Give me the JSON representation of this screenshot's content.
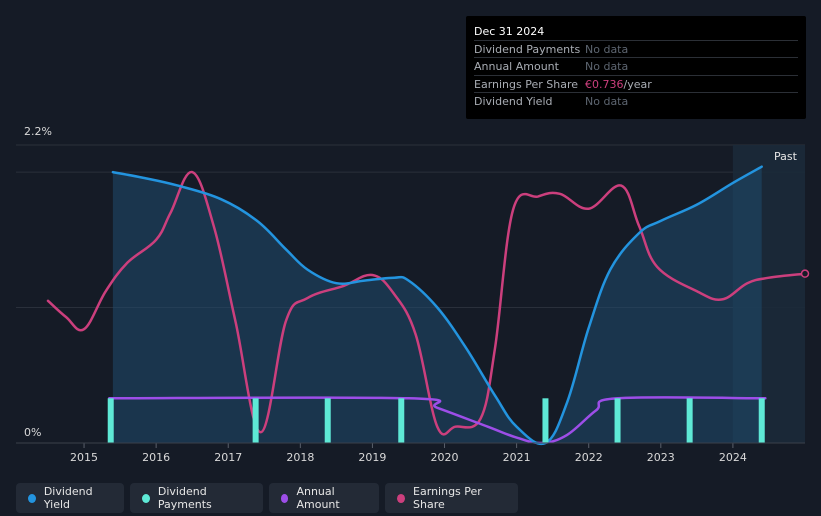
{
  "tooltip": {
    "date": "Dec 31 2024",
    "rows": [
      {
        "label": "Dividend Payments",
        "value": "No data",
        "unit": ""
      },
      {
        "label": "Annual Amount",
        "value": "No data",
        "unit": ""
      },
      {
        "label": "Earnings Per Share",
        "value": "€0.736",
        "unit": "/year"
      },
      {
        "label": "Dividend Yield",
        "value": "No data",
        "unit": ""
      }
    ]
  },
  "past_label": "Past",
  "legend": [
    {
      "label": "Dividend Yield",
      "color": "#2394df"
    },
    {
      "label": "Dividend Payments",
      "color": "#5ee9d6"
    },
    {
      "label": "Annual Amount",
      "color": "#9d4ee8"
    },
    {
      "label": "Earnings Per Share",
      "color": "#cc3f7d"
    }
  ],
  "chart_data": {
    "type": "line",
    "ylim": [
      0,
      2.2
    ],
    "y_tick_labels": [
      "2.2%",
      "0%"
    ],
    "x_ticks": [
      2015,
      2016,
      2017,
      2018,
      2019,
      2020,
      2021,
      2022,
      2023,
      2024
    ],
    "xlim": [
      2014.5,
      2025.0
    ],
    "past_region_start": 2024.0,
    "series": [
      {
        "name": "Dividend Yield",
        "color": "#2394df",
        "points": [
          [
            2015.4,
            2.0
          ],
          [
            2015.8,
            1.96
          ],
          [
            2016.3,
            1.9
          ],
          [
            2016.9,
            1.8
          ],
          [
            2017.4,
            1.64
          ],
          [
            2017.8,
            1.43
          ],
          [
            2018.1,
            1.28
          ],
          [
            2018.5,
            1.18
          ],
          [
            2018.9,
            1.2
          ],
          [
            2019.3,
            1.22
          ],
          [
            2019.5,
            1.2
          ],
          [
            2019.9,
            1.0
          ],
          [
            2020.3,
            0.7
          ],
          [
            2020.7,
            0.35
          ],
          [
            2021.0,
            0.12
          ],
          [
            2021.4,
            0.0
          ],
          [
            2021.7,
            0.3
          ],
          [
            2022.0,
            0.85
          ],
          [
            2022.3,
            1.28
          ],
          [
            2022.7,
            1.55
          ],
          [
            2023.0,
            1.64
          ],
          [
            2023.5,
            1.76
          ],
          [
            2024.0,
            1.92
          ],
          [
            2024.4,
            2.04
          ]
        ]
      },
      {
        "name": "Earnings Per Share",
        "color": "#cc3f7d",
        "points": [
          [
            2014.5,
            1.05
          ],
          [
            2014.75,
            0.93
          ],
          [
            2015.0,
            0.84
          ],
          [
            2015.3,
            1.12
          ],
          [
            2015.6,
            1.33
          ],
          [
            2016.0,
            1.5
          ],
          [
            2016.2,
            1.7
          ],
          [
            2016.5,
            2.0
          ],
          [
            2016.8,
            1.6
          ],
          [
            2017.1,
            0.9
          ],
          [
            2017.45,
            0.08
          ],
          [
            2017.8,
            0.9
          ],
          [
            2018.1,
            1.07
          ],
          [
            2018.6,
            1.16
          ],
          [
            2019.0,
            1.24
          ],
          [
            2019.3,
            1.1
          ],
          [
            2019.6,
            0.8
          ],
          [
            2019.9,
            0.12
          ],
          [
            2020.15,
            0.12
          ],
          [
            2020.5,
            0.18
          ],
          [
            2020.7,
            0.7
          ],
          [
            2020.95,
            1.72
          ],
          [
            2021.3,
            1.82
          ],
          [
            2021.6,
            1.84
          ],
          [
            2022.0,
            1.73
          ],
          [
            2022.45,
            1.9
          ],
          [
            2022.7,
            1.6
          ],
          [
            2022.95,
            1.3
          ],
          [
            2023.5,
            1.12
          ],
          [
            2023.85,
            1.06
          ],
          [
            2024.2,
            1.18
          ],
          [
            2024.5,
            1.22
          ],
          [
            2025.0,
            1.25
          ]
        ]
      },
      {
        "name": "Annual Amount",
        "color": "#9d4ee8",
        "points": [
          [
            2015.35,
            0.33
          ],
          [
            2019.5,
            0.33
          ],
          [
            2019.9,
            0.26
          ],
          [
            2020.6,
            0.12
          ],
          [
            2021.0,
            0.04
          ],
          [
            2021.35,
            0.0
          ],
          [
            2021.7,
            0.06
          ],
          [
            2022.1,
            0.24
          ],
          [
            2022.4,
            0.33
          ],
          [
            2024.45,
            0.33
          ]
        ]
      }
    ],
    "dividend_payments": {
      "name": "Dividend Payments",
      "color": "#5ee9d6",
      "points": [
        [
          2015.37,
          0.33
        ],
        [
          2017.38,
          0.33
        ],
        [
          2018.38,
          0.33
        ],
        [
          2019.4,
          0.33
        ],
        [
          2021.4,
          0.33
        ],
        [
          2022.4,
          0.33
        ],
        [
          2023.4,
          0.33
        ],
        [
          2024.4,
          0.33
        ]
      ]
    }
  }
}
